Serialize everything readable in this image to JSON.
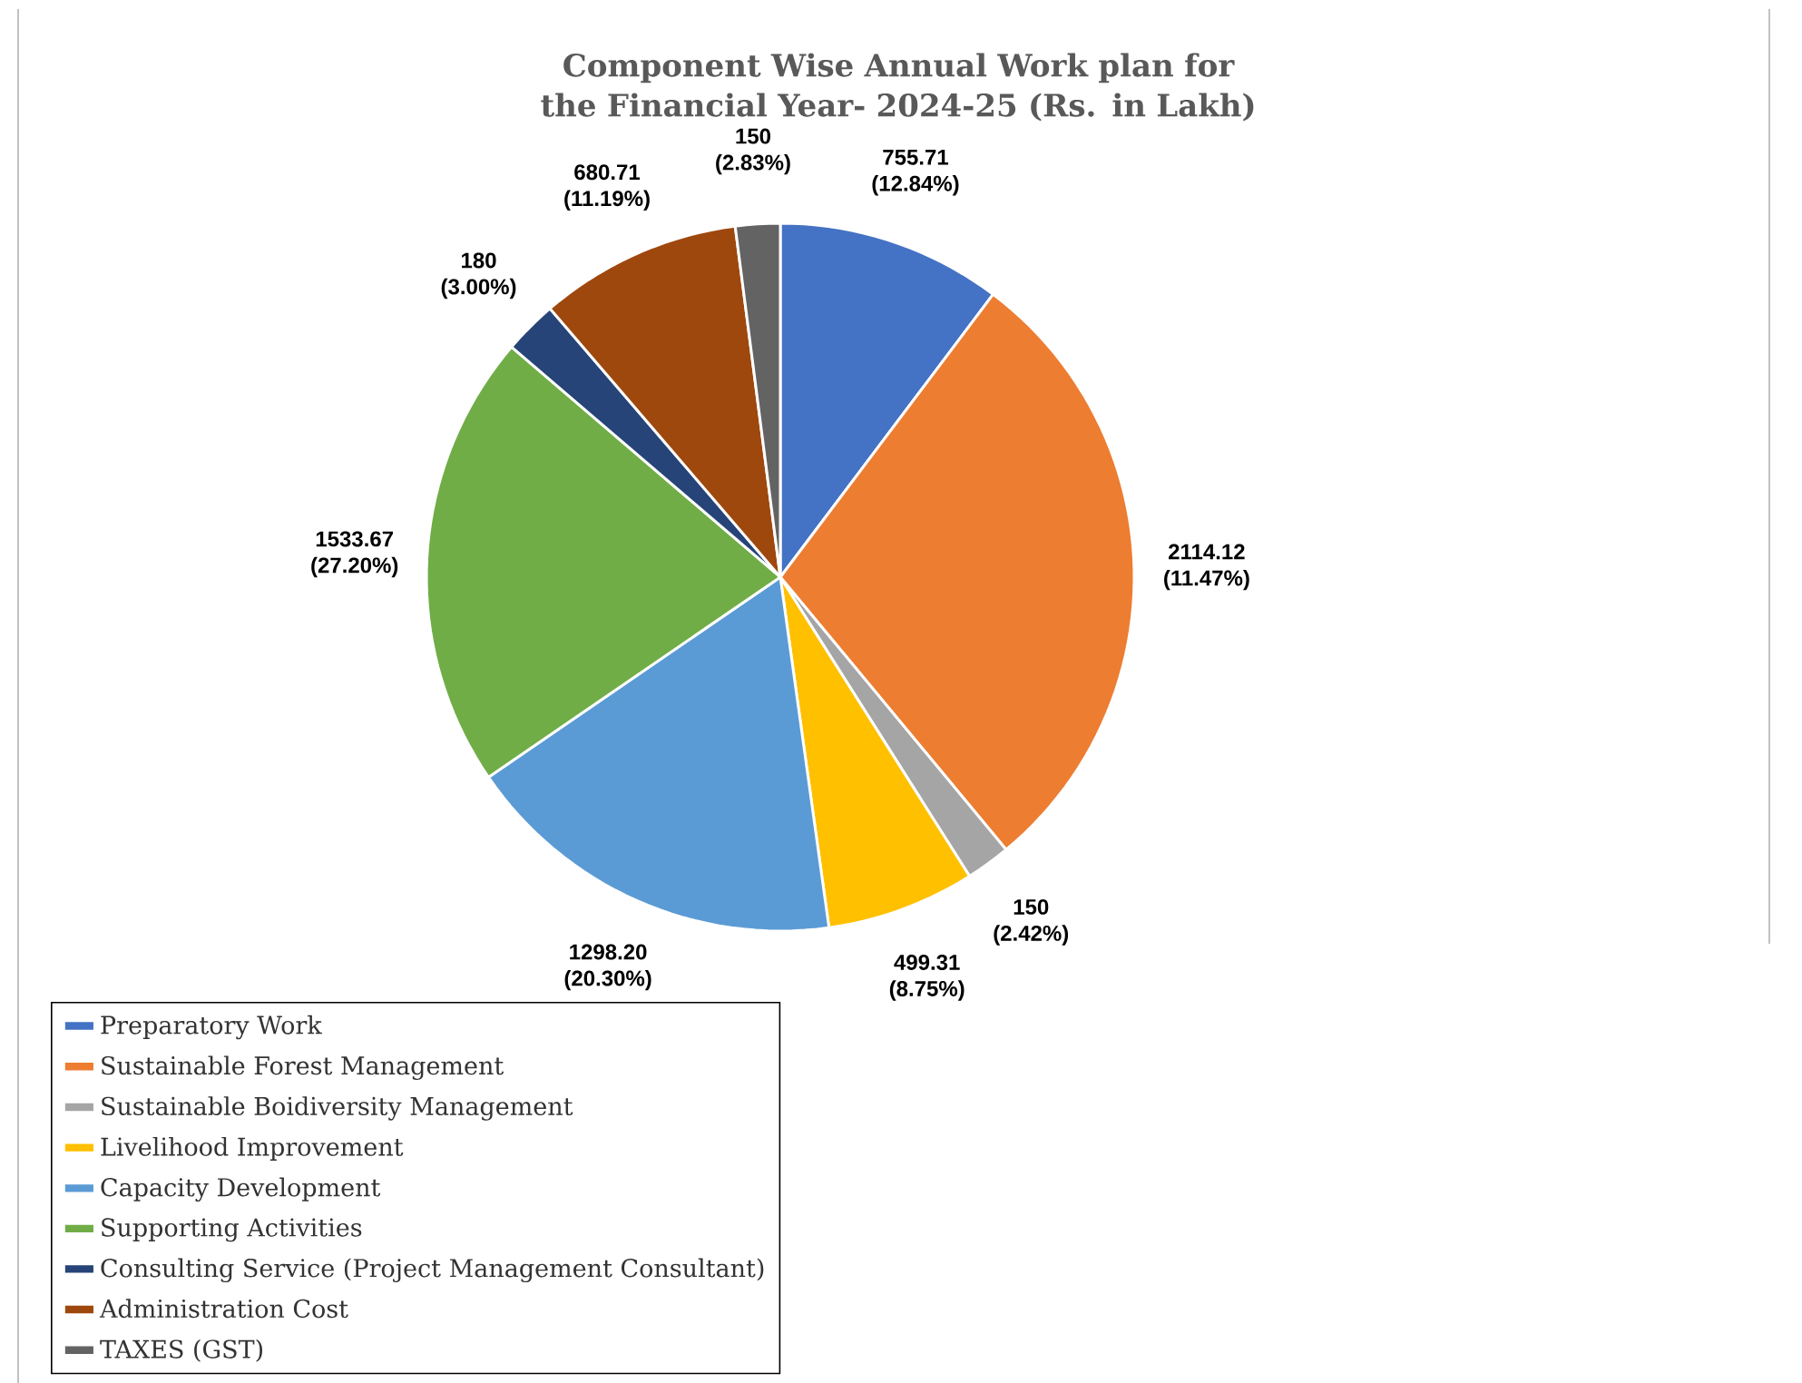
{
  "chart_data": {
    "type": "pie",
    "title": "Component Wise Annual Work plan for the Financial Year- 2024-25 (Rs. in Lakh)",
    "categories": [
      "Preparatory Work",
      "Sustainable Forest Management",
      "Sustainable Boidiversity Management",
      "Livelihood Improvement",
      "Capacity Development",
      "Supporting Activities",
      "Consulting Service (Project Management Consultant)",
      "Administration Cost",
      "TAXES (GST)"
    ],
    "values": [
      755.71,
      2114.12,
      150,
      499.31,
      1298.2,
      1533.67,
      180,
      680.71,
      150
    ],
    "colors": [
      "#4472c4",
      "#ed7d31",
      "#a5a5a5",
      "#ffc000",
      "#5b9bd5",
      "#70ad47",
      "#264478",
      "#9e480e",
      "#636363"
    ],
    "value_labels": [
      "755.71 (12.84%)",
      "2114.12 (11.47%)",
      "150 (2.42%)",
      "499.31 (8.75%)",
      "1298.20 (20.30%)",
      "1533.67 (27.20%)",
      "180 (3.00%)",
      "680.71 (11.19%)",
      "150 (2.83%)"
    ],
    "legend": "bottom"
  }
}
